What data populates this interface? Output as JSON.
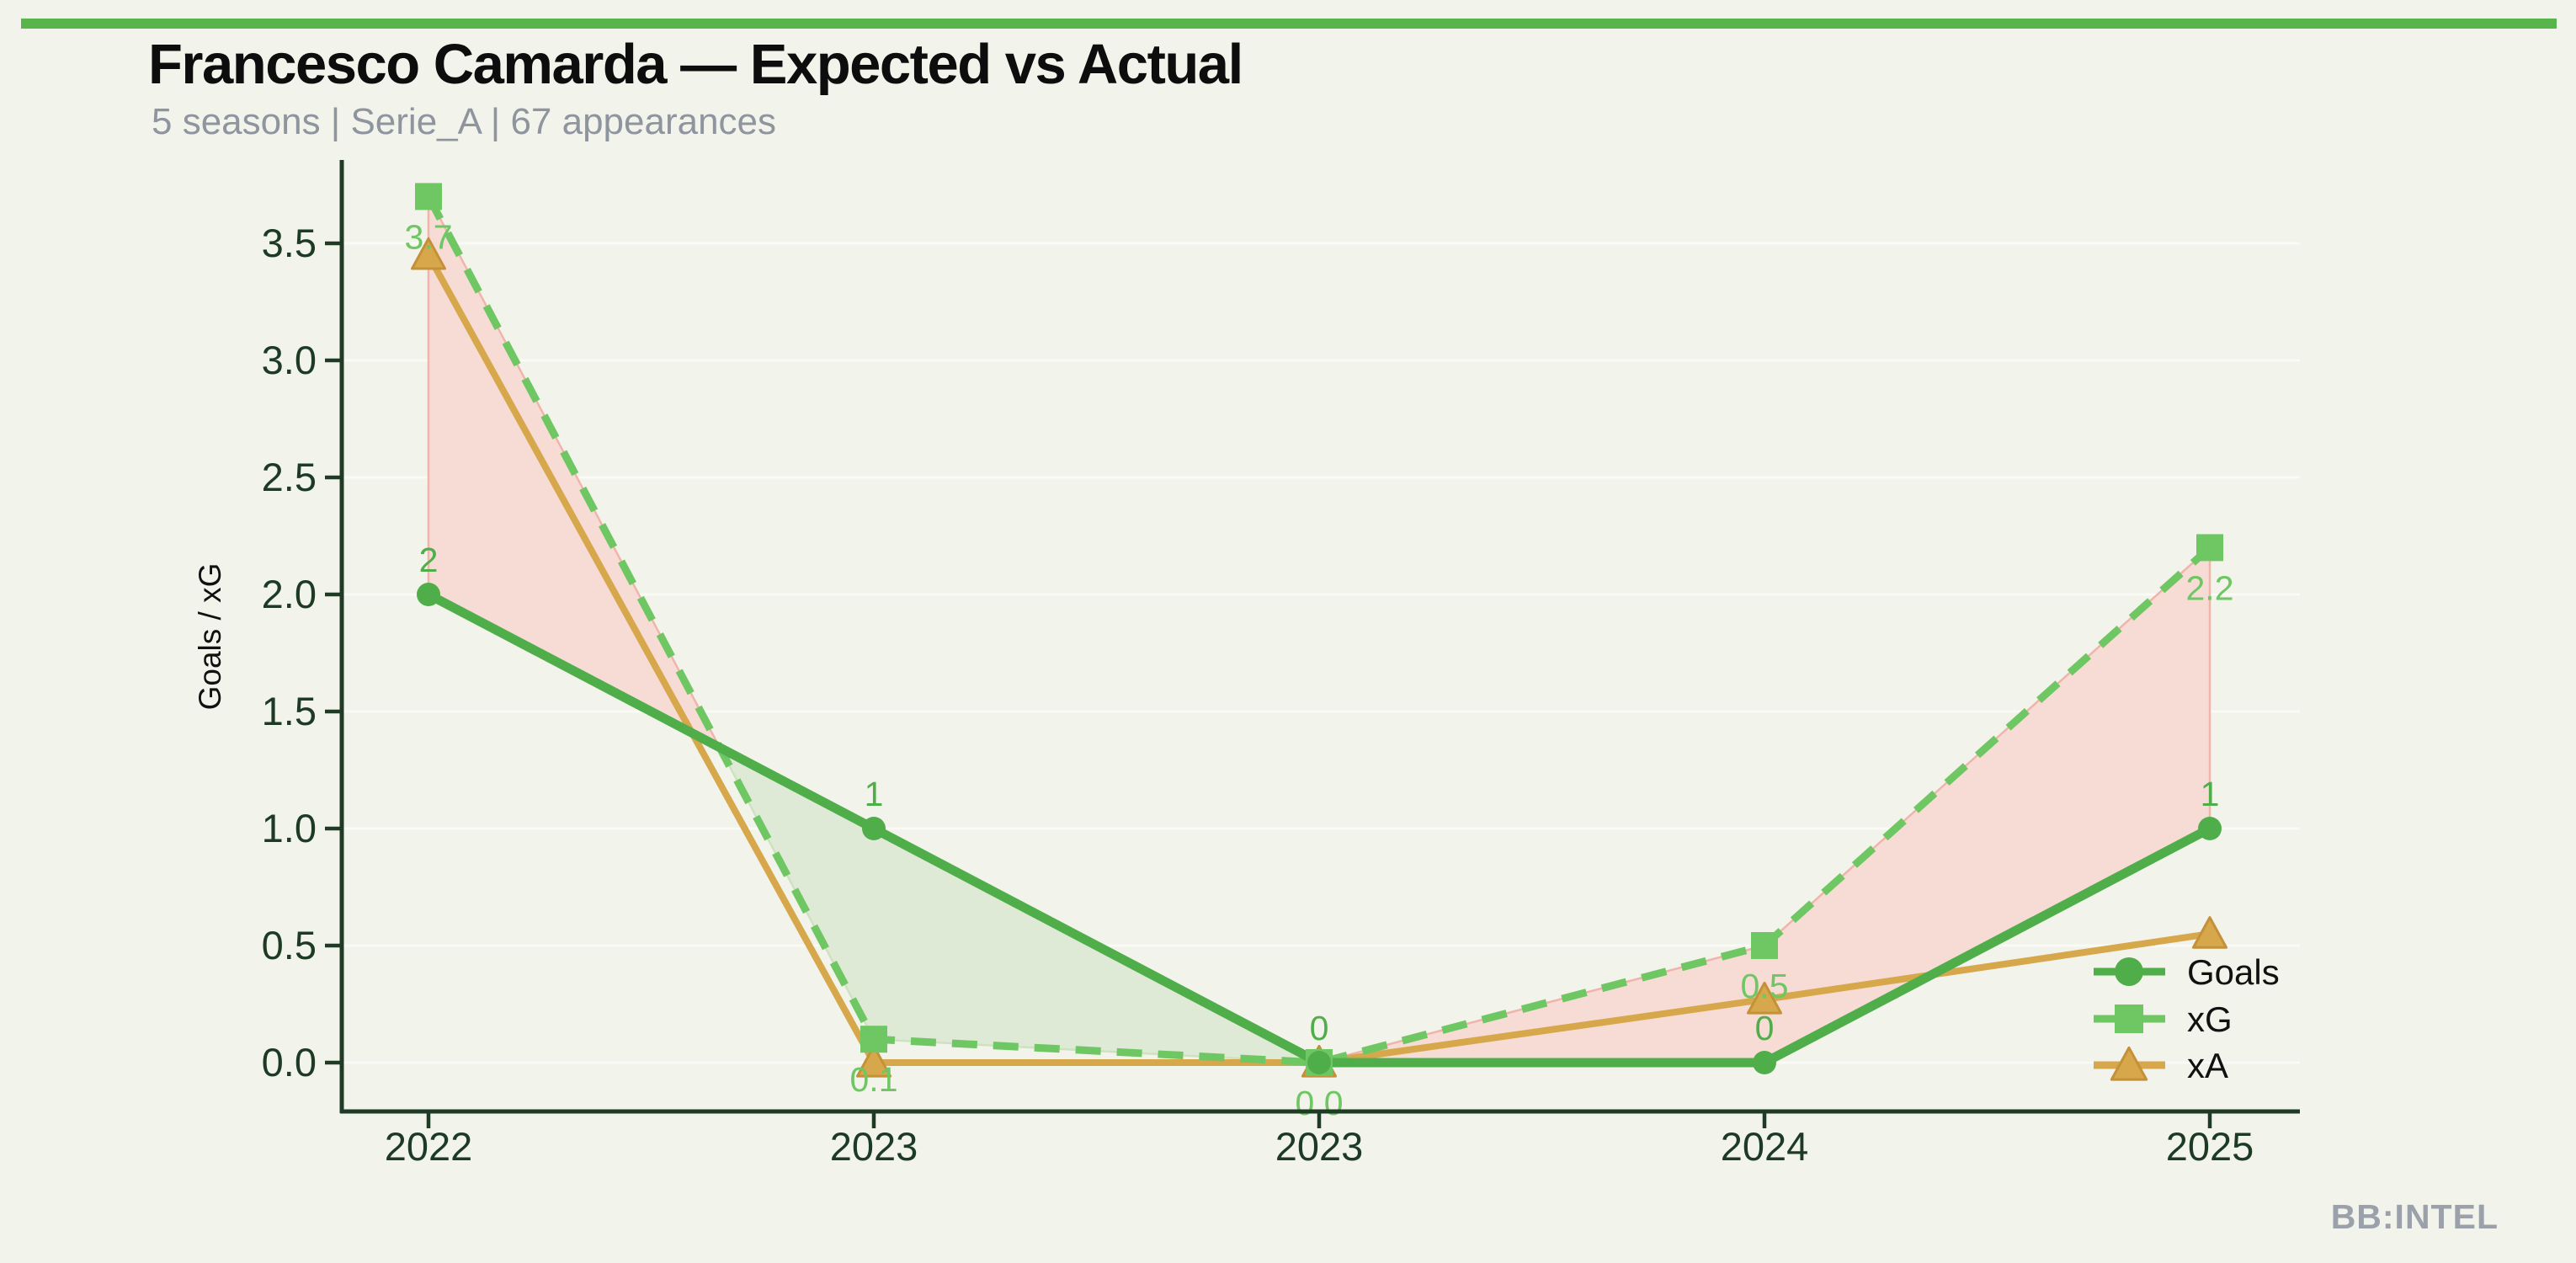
{
  "page": {
    "title": "Francesco Camarda — Expected vs Actual",
    "subtitle": "5 seasons | Serie_A | 67 appearances",
    "brand": "BB:INTEL",
    "accent_color": "#57b54b",
    "background_color": "#f2f3ea"
  },
  "chart_data": {
    "type": "line",
    "title": "Francesco Camarda — Expected vs Actual",
    "subtitle": "5 seasons | Serie_A | 67 appearances",
    "categories": [
      "2022",
      "2023",
      "2023",
      "2024",
      "2025"
    ],
    "xlabel": "",
    "ylabel": "Goals / xG",
    "yticks": [
      0.0,
      0.5,
      1.0,
      1.5,
      2.0,
      2.5,
      3.0,
      3.5
    ],
    "ylim": [
      -0.21,
      3.85
    ],
    "grid": "faint-horizontal",
    "legend_position": "lower right",
    "axis_color": "#1f3b26",
    "tick_label_color": "#1d3a24",
    "ylabel_color": "#111111",
    "legend_text_color": "#111111",
    "grid_color": "rgba(255,255,255,0.6)",
    "series": [
      {
        "name": "Goals",
        "marker": "circle",
        "line_style": "solid",
        "color": "#4fae4a",
        "values": [
          2,
          1,
          0,
          0,
          1
        ],
        "labels": [
          "2",
          "1",
          "0",
          "0",
          "1"
        ],
        "label_position": "above"
      },
      {
        "name": "xG",
        "marker": "square",
        "line_style": "dashed",
        "color": "#6fc763",
        "values": [
          3.7,
          0.1,
          0.0,
          0.5,
          2.2
        ],
        "labels": [
          "3.7",
          "0.1",
          "0.0",
          "0.5",
          "2.2"
        ],
        "label_position": "below"
      },
      {
        "name": "xA",
        "marker": "triangle",
        "line_style": "solid",
        "color": "#d7a84b",
        "values": [
          3.45,
          0.0,
          0.0,
          0.27,
          0.55
        ],
        "labels": null,
        "label_position": "none"
      }
    ],
    "fills": [
      {
        "above": "xG",
        "below": "Goals",
        "meaning": "overperform-expected region",
        "color": "#f7dcd6",
        "edge": "#f0b4ab"
      },
      {
        "above": "Goals",
        "below": "xG",
        "meaning": "underperform-expected region",
        "color": "#deead5",
        "edge": "#cfe2c0"
      }
    ],
    "legend": [
      "Goals",
      "xG",
      "xA"
    ]
  }
}
